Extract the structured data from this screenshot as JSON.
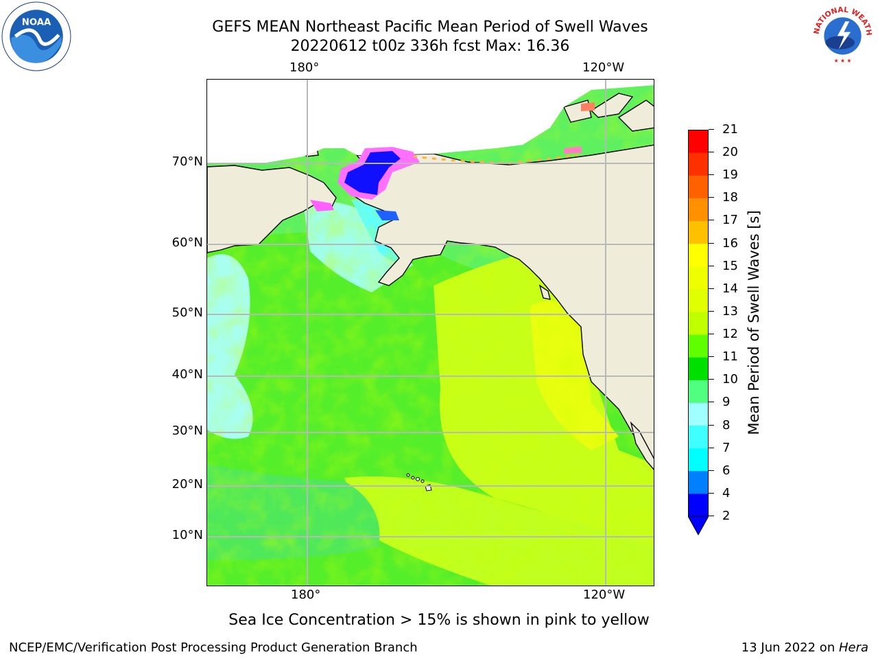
{
  "title": {
    "line1": "GEFS MEAN Northeast Pacific Mean Period of Swell Waves",
    "line2": "20220612 t00z 336h fcst   Max: 16.36"
  },
  "map": {
    "lon_labels_top": [
      "180°",
      "120°W"
    ],
    "lon_labels_bottom": [
      "180°",
      "120°W"
    ],
    "lat_labels": [
      "70°N",
      "60°N",
      "50°N",
      "40°N",
      "30°N",
      "20°N",
      "10°N"
    ],
    "grid": true,
    "land_color": "#efedda",
    "ice_note": "Sea Ice Concentration > 15% is shown in pink to yellow"
  },
  "colorbar": {
    "label": "Mean Period of Swell Waves [s]",
    "ticks": [
      "2",
      "4",
      "6",
      "7",
      "8",
      "9",
      "10",
      "11",
      "12",
      "13",
      "14",
      "15",
      "16",
      "17",
      "18",
      "19",
      "20",
      "21"
    ],
    "colors": [
      "#0000ff",
      "#0080ff",
      "#00ffff",
      "#40ffff",
      "#a0ffff",
      "#50ff80",
      "#00e000",
      "#60ff00",
      "#c0ff00",
      "#e0ff00",
      "#f0ff00",
      "#ffff00",
      "#ffc000",
      "#ff9000",
      "#ff6000",
      "#ff3000",
      "#ff0000"
    ],
    "extend": "min"
  },
  "footer": {
    "left": "NCEP/EMC/Verification Post Processing Product Generation Branch",
    "right_date": "13 Jun 2022 on ",
    "right_machine": "Hera"
  },
  "logos": {
    "noaa_text": "NOAA",
    "nws_text": "NATIONAL WEATHER SERVICE"
  }
}
